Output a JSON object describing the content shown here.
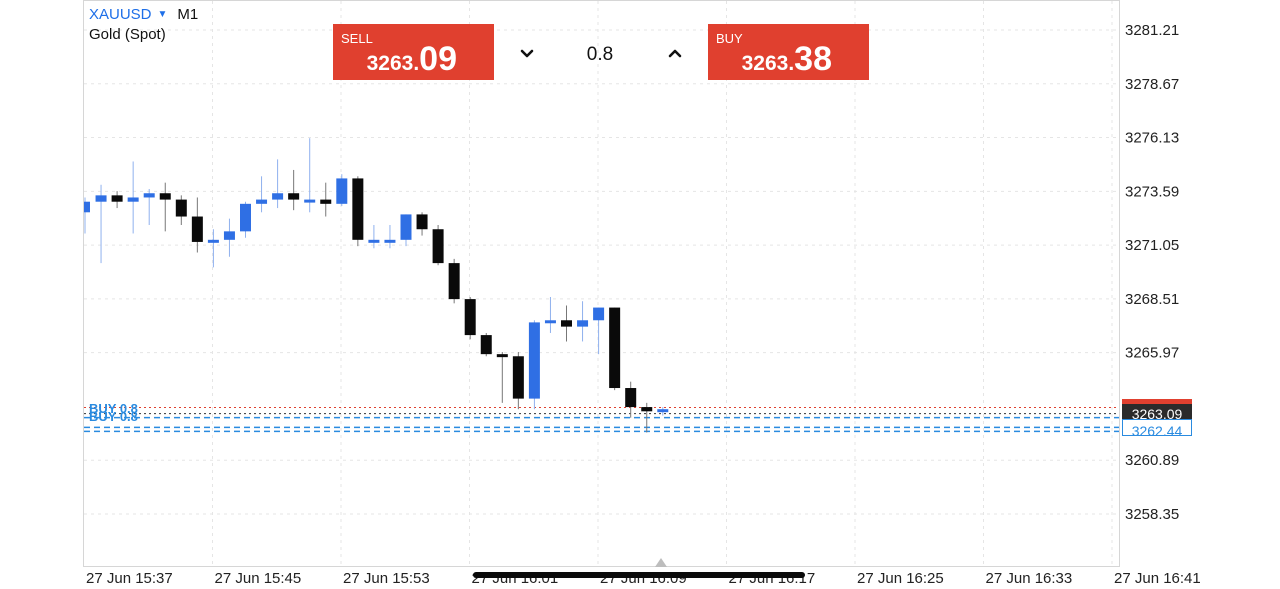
{
  "header": {
    "symbol": "XAUUSD",
    "dropdown_icon": "caret-down-icon",
    "timeframe": "M1",
    "instrument_name": "Gold (Spot)"
  },
  "trade_panel": {
    "sell_label": "SELL",
    "sell_price_prefix": "3263.",
    "sell_price_big": "09",
    "buy_label": "BUY",
    "buy_price_prefix": "3263.",
    "buy_price_big": "38",
    "volume": "0.8",
    "decrease_icon": "chevron-down-icon",
    "increase_icon": "chevron-up-icon"
  },
  "price_tags": {
    "bid": "3263.09",
    "ask": "3263.38",
    "buy_position": "3262.44"
  },
  "order_lines": [
    {
      "label": "BUY 0.8",
      "price": 3263.09
    },
    {
      "label": "BUY 0.8",
      "price": 3262.44
    }
  ],
  "colors": {
    "bullish": "#2f6fe4",
    "bearish": "#0a0a0a",
    "sell_button": "#e0402f",
    "buy_button": "#e0402f",
    "accent": "#1e6fe8",
    "grid": "#e5e5e5"
  },
  "chart_data": {
    "type": "candlestick",
    "symbol": "XAUUSD",
    "timeframe": "M1",
    "grid": true,
    "y_ticks": [
      "3281.21",
      "3278.67",
      "3276.13",
      "3273.59",
      "3271.05",
      "3268.51",
      "3265.97",
      "3260.89",
      "3258.35"
    ],
    "y_tick_values": [
      3281.21,
      3278.67,
      3276.13,
      3273.59,
      3271.05,
      3268.51,
      3265.97,
      3260.89,
      3258.35
    ],
    "x_ticks": [
      "27 Jun 15:37",
      "27 Jun 15:45",
      "27 Jun 15:53",
      "27 Jun 16:01",
      "27 Jun 16:09",
      "27 Jun 16:17",
      "27 Jun 16:25",
      "27 Jun 16:33",
      "27 Jun 16:41"
    ],
    "ylim": [
      3257.6,
      3283.2
    ],
    "candles": [
      {
        "o": 3272.6,
        "h": 3273.3,
        "l": 3271.6,
        "c": 3273.1
      },
      {
        "o": 3273.1,
        "h": 3273.9,
        "l": 3270.2,
        "c": 3273.4
      },
      {
        "o": 3273.4,
        "h": 3273.6,
        "l": 3272.8,
        "c": 3273.1
      },
      {
        "o": 3273.1,
        "h": 3275.0,
        "l": 3271.6,
        "c": 3273.3
      },
      {
        "o": 3273.3,
        "h": 3273.7,
        "l": 3272.0,
        "c": 3273.5
      },
      {
        "o": 3273.5,
        "h": 3274.0,
        "l": 3271.7,
        "c": 3273.2
      },
      {
        "o": 3273.2,
        "h": 3273.4,
        "l": 3272.0,
        "c": 3272.4
      },
      {
        "o": 3272.4,
        "h": 3273.3,
        "l": 3270.7,
        "c": 3271.2
      },
      {
        "o": 3271.2,
        "h": 3271.8,
        "l": 3270.0,
        "c": 3271.3
      },
      {
        "o": 3271.3,
        "h": 3272.3,
        "l": 3270.5,
        "c": 3271.7
      },
      {
        "o": 3271.7,
        "h": 3273.1,
        "l": 3271.4,
        "c": 3273.0
      },
      {
        "o": 3273.0,
        "h": 3274.3,
        "l": 3272.6,
        "c": 3273.2
      },
      {
        "o": 3273.2,
        "h": 3275.1,
        "l": 3272.8,
        "c": 3273.5
      },
      {
        "o": 3273.5,
        "h": 3274.6,
        "l": 3272.7,
        "c": 3273.2
      },
      {
        "o": 3273.2,
        "h": 3276.1,
        "l": 3272.6,
        "c": 3273.2
      },
      {
        "o": 3273.2,
        "h": 3274.0,
        "l": 3272.4,
        "c": 3273.0
      },
      {
        "o": 3273.0,
        "h": 3274.4,
        "l": 3272.9,
        "c": 3274.2
      },
      {
        "o": 3274.2,
        "h": 3274.3,
        "l": 3271.0,
        "c": 3271.3
      },
      {
        "o": 3271.3,
        "h": 3272.0,
        "l": 3270.9,
        "c": 3271.3
      },
      {
        "o": 3271.3,
        "h": 3272.0,
        "l": 3270.9,
        "c": 3271.3
      },
      {
        "o": 3271.3,
        "h": 3272.5,
        "l": 3271.0,
        "c": 3272.5
      },
      {
        "o": 3272.5,
        "h": 3272.6,
        "l": 3271.5,
        "c": 3271.8
      },
      {
        "o": 3271.8,
        "h": 3272.0,
        "l": 3270.1,
        "c": 3270.2
      },
      {
        "o": 3270.2,
        "h": 3270.4,
        "l": 3268.3,
        "c": 3268.5
      },
      {
        "o": 3268.5,
        "h": 3268.6,
        "l": 3266.6,
        "c": 3266.8
      },
      {
        "o": 3266.8,
        "h": 3266.9,
        "l": 3265.8,
        "c": 3265.9
      },
      {
        "o": 3265.9,
        "h": 3266.0,
        "l": 3263.6,
        "c": 3265.8
      },
      {
        "o": 3265.8,
        "h": 3266.0,
        "l": 3263.3,
        "c": 3263.8
      },
      {
        "o": 3263.8,
        "h": 3267.5,
        "l": 3263.3,
        "c": 3267.4
      },
      {
        "o": 3267.4,
        "h": 3268.6,
        "l": 3266.9,
        "c": 3267.5
      },
      {
        "o": 3267.5,
        "h": 3268.2,
        "l": 3266.5,
        "c": 3267.2
      },
      {
        "o": 3267.2,
        "h": 3268.4,
        "l": 3266.5,
        "c": 3267.5
      },
      {
        "o": 3267.5,
        "h": 3268.1,
        "l": 3265.9,
        "c": 3268.1
      },
      {
        "o": 3268.1,
        "h": 3268.1,
        "l": 3264.2,
        "c": 3264.3
      },
      {
        "o": 3264.3,
        "h": 3264.6,
        "l": 3262.9,
        "c": 3263.4
      },
      {
        "o": 3263.4,
        "h": 3263.6,
        "l": 3262.2,
        "c": 3263.2
      },
      {
        "o": 3263.2,
        "h": 3263.4,
        "l": 3263.0,
        "c": 3263.3
      }
    ]
  }
}
